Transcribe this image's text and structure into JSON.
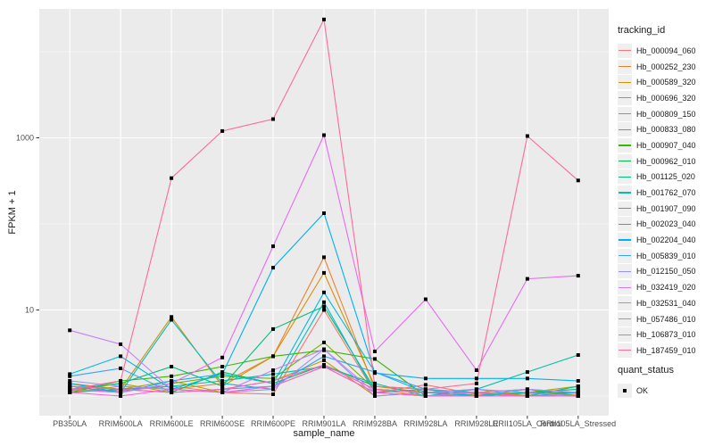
{
  "chart_data": {
    "type": "line",
    "title": "",
    "xlabel": "sample_name",
    "ylabel": "FPKM + 1",
    "y_scale": "log10",
    "ylim": [
      0.6,
      31000
    ],
    "y_ticks": [
      {
        "label": "1000",
        "value": 1000
      },
      {
        "label": "10",
        "value": 10
      }
    ],
    "grid": {
      "major_values": [
        10,
        1000
      ],
      "minor_values": [
        1,
        100,
        10000
      ],
      "color": "#FFFFFF"
    },
    "panel_background": "#EBEBEB",
    "point_color": "#000000",
    "point_shape": "square",
    "axis_text_color": "#4D4D4D",
    "tick_color": "#333333",
    "legend_position": "right",
    "legend_title": "tracking_id",
    "categories": [
      "PB350LA",
      "RRIM600LA",
      "RRIM600LE",
      "RRIM600SE",
      "RRIM600PE",
      "RRIM901LA",
      "RRIM928BA",
      "RRIM928LA",
      "RRIM928LE",
      "RRII105LA_Control",
      "RRII105LA_Stressed"
    ],
    "series": [
      {
        "name": "Hb_000094_060",
        "color": "#F8766D",
        "values": [
          1.2,
          1.15,
          1.3,
          1.1,
          1.05,
          10,
          1.1,
          1.35,
          1.05,
          1.0,
          1.05
        ]
      },
      {
        "name": "Hb_000252_230",
        "color": "#EA8331",
        "values": [
          1.1,
          1.3,
          1.2,
          1.4,
          2.9,
          41,
          1.2,
          1.0,
          1.1,
          1.05,
          1.1
        ]
      },
      {
        "name": "Hb_000589_320",
        "color": "#D89000",
        "values": [
          1.3,
          1.2,
          8.3,
          1.3,
          2.9,
          27,
          1.3,
          1.1,
          1.0,
          1.1,
          1.0
        ]
      },
      {
        "name": "Hb_000696_320",
        "color": "#C09B00",
        "values": [
          1.15,
          1.4,
          1.1,
          1.2,
          1.5,
          2.6,
          1.0,
          1.1,
          1.2,
          1.0,
          1.1
        ]
      },
      {
        "name": "Hb_000809_150",
        "color": "#A3A500",
        "values": [
          1.4,
          1.2,
          1.5,
          1.1,
          1.3,
          2.2,
          1.1,
          1.0,
          1.05,
          1.1,
          1.3
        ]
      },
      {
        "name": "Hb_000833_080",
        "color": "#7CAE00",
        "values": [
          1.2,
          1.1,
          1.4,
          1.7,
          1.6,
          4.2,
          1.2,
          1.1,
          1.0,
          1.1,
          1.2
        ]
      },
      {
        "name": "Hb_000907_040",
        "color": "#39B600",
        "values": [
          1.1,
          1.5,
          1.7,
          2.2,
          2.9,
          3.4,
          2.7,
          1.0,
          1.1,
          1.2,
          1.0
        ]
      },
      {
        "name": "Hb_000962_010",
        "color": "#00BB4E",
        "values": [
          1.3,
          1.2,
          1.1,
          1.9,
          1.4,
          2.3,
          1.3,
          1.2,
          1.0,
          1.1,
          1.1
        ]
      },
      {
        "name": "Hb_001125_020",
        "color": "#00BF7D",
        "values": [
          1.2,
          1.4,
          2.2,
          1.3,
          6.0,
          11,
          1.2,
          1.1,
          1.0,
          1.0,
          1.3
        ]
      },
      {
        "name": "Hb_001762_070",
        "color": "#00C1A3",
        "values": [
          1.1,
          1.2,
          1.3,
          1.5,
          1.8,
          2.2,
          1.4,
          1.0,
          1.2,
          1.9,
          3.0
        ]
      },
      {
        "name": "Hb_001907_090",
        "color": "#00BFC4",
        "values": [
          1.3,
          1.1,
          7.7,
          1.4,
          1.2,
          12.3,
          1.1,
          1.2,
          1.0,
          1.1,
          1.2
        ]
      },
      {
        "name": "Hb_002023_040",
        "color": "#00BAE0",
        "values": [
          1.8,
          2.9,
          1.2,
          1.8,
          1.4,
          16,
          1.9,
          1.1,
          1.0,
          1.2,
          1.1
        ]
      },
      {
        "name": "Hb_002204_040",
        "color": "#00B0F6",
        "values": [
          1.4,
          1.1,
          1.5,
          1.8,
          31,
          133,
          1.85,
          1.6,
          1.6,
          1.6,
          1.5
        ]
      },
      {
        "name": "Hb_005839_010",
        "color": "#35A2FF",
        "values": [
          1.7,
          2.1,
          1.1,
          1.2,
          1.3,
          2.9,
          1.9,
          1.2,
          1.1,
          1.0,
          1.1
        ]
      },
      {
        "name": "Hb_012150_050",
        "color": "#9590FF",
        "values": [
          1.5,
          1.3,
          1.2,
          1.1,
          1.2,
          3.5,
          1.0,
          1.1,
          1.2,
          1.1,
          1.0
        ]
      },
      {
        "name": "Hb_032419_020",
        "color": "#C77CFF",
        "values": [
          5.8,
          4.0,
          1.2,
          1.1,
          2.0,
          3.5,
          1.1,
          1.0,
          1.1,
          1.2,
          1.1
        ]
      },
      {
        "name": "Hb_032531_040",
        "color": "#E76BF3",
        "values": [
          1.2,
          1.1,
          1.4,
          2.8,
          55,
          1075,
          3.3,
          13.3,
          2.0,
          23,
          25
        ]
      },
      {
        "name": "Hb_057486_010",
        "color": "#FA62DB",
        "values": [
          1.1,
          1.0,
          1.2,
          1.1,
          1.3,
          2.2,
          1.1,
          1.0,
          1.0,
          1.0,
          1.0
        ]
      },
      {
        "name": "Hb_106873_010",
        "color": "#FF62BC",
        "values": [
          1.3,
          1.2,
          1.1,
          1.2,
          1.5,
          2.3,
          1.2,
          1.1,
          1.1,
          1.0,
          1.0
        ]
      },
      {
        "name": "Hb_187459_010",
        "color": "#FF6A98",
        "values": [
          1.2,
          1.5,
          340,
          1200,
          1650,
          23700,
          1.3,
          1.2,
          1.4,
          1050,
          320
        ]
      }
    ],
    "quant_legend": {
      "title": "quant_status",
      "items": [
        {
          "label": "OK",
          "marker": "black-square"
        }
      ]
    }
  }
}
